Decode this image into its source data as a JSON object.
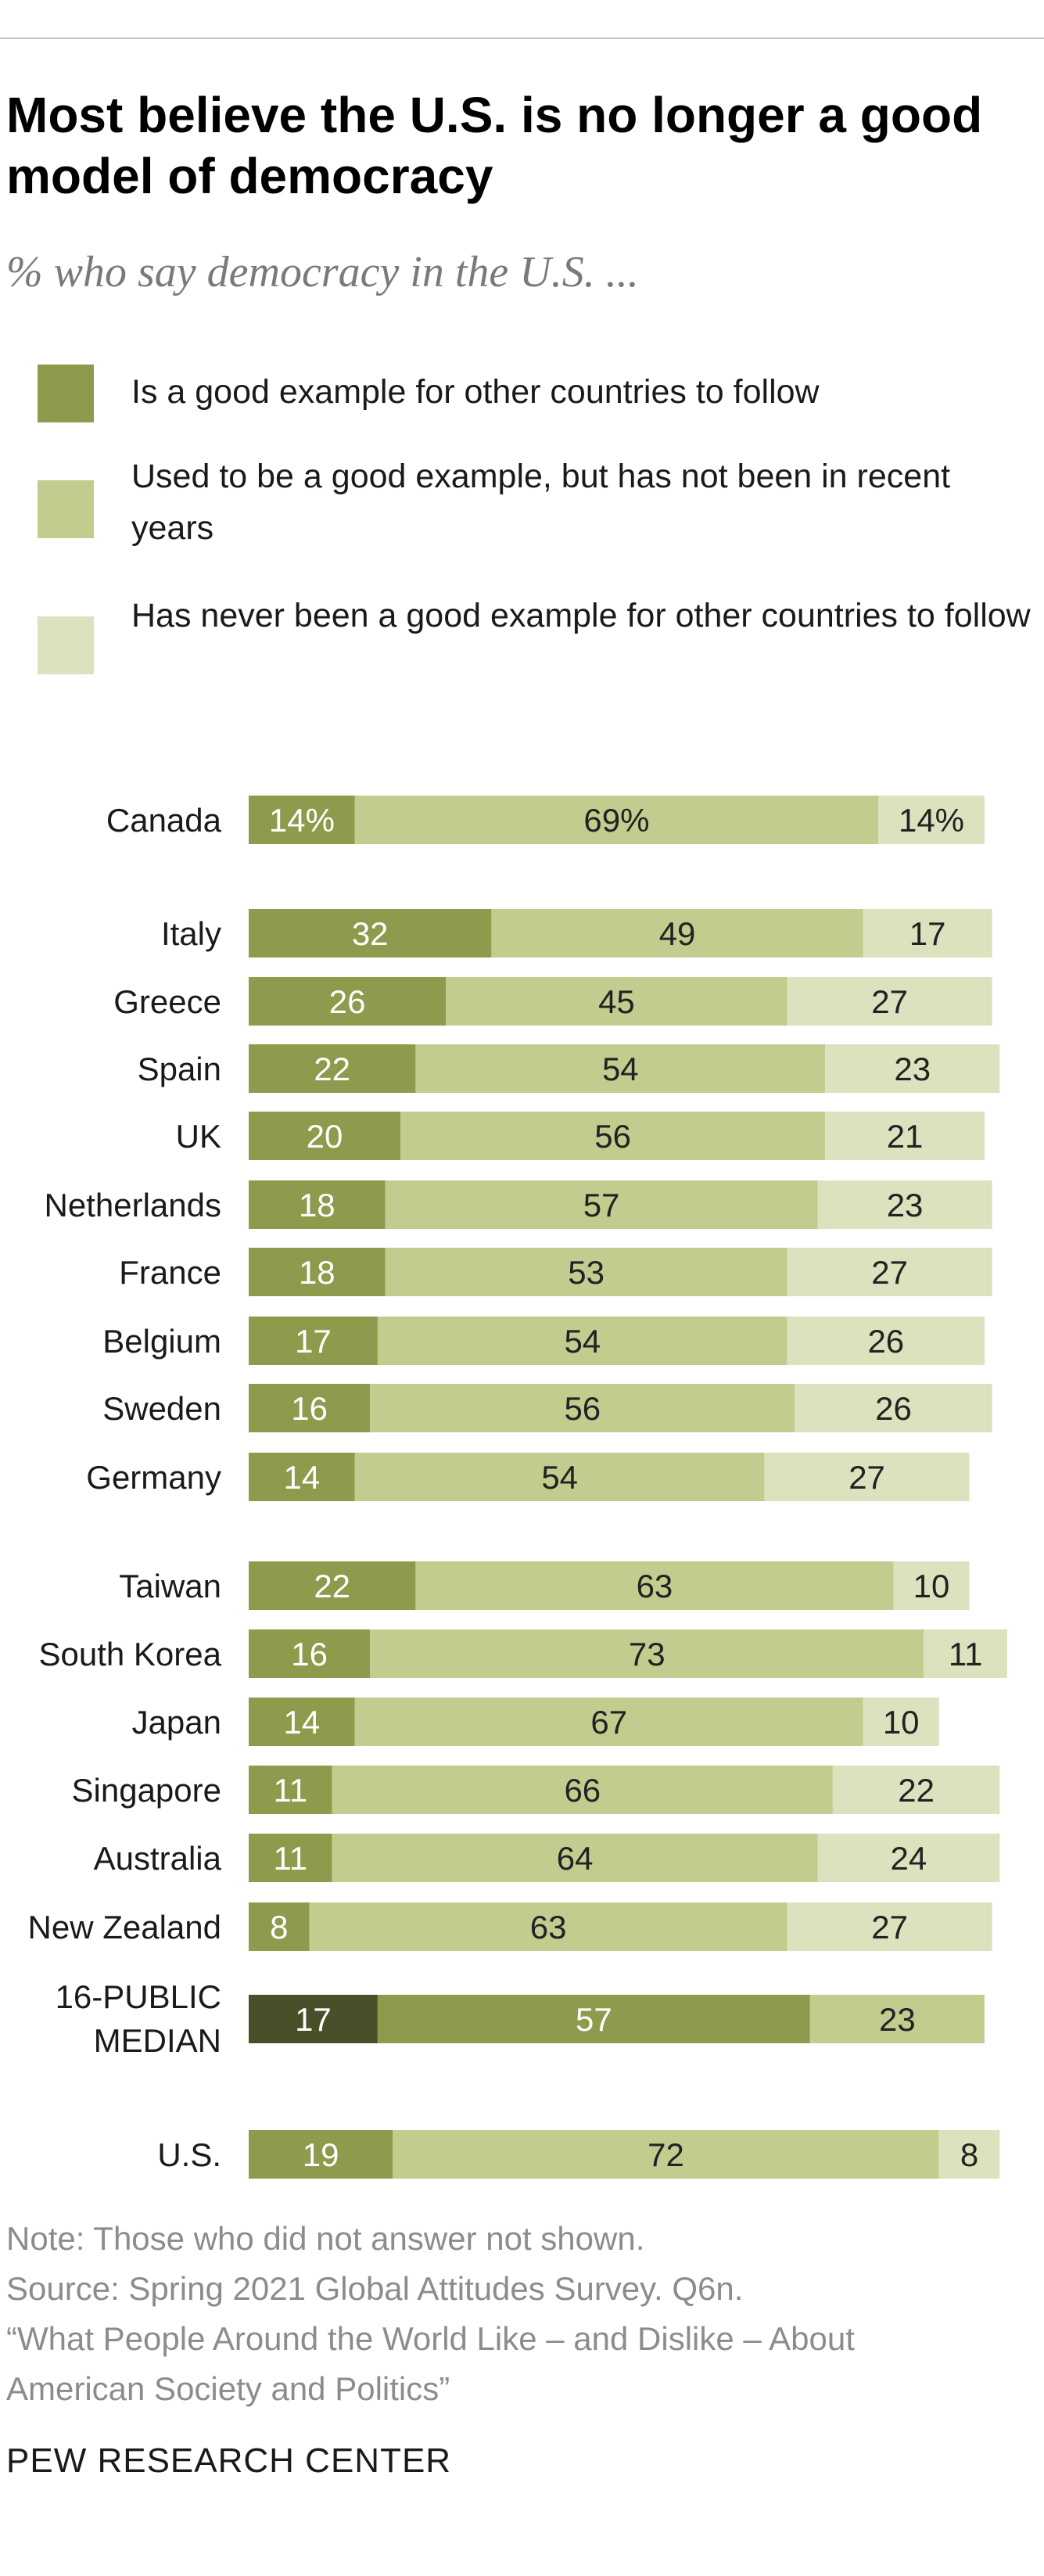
{
  "title": "Most believe the U.S. is no longer a good model of democracy",
  "subtitle": "% who say democracy in the U.S. ...",
  "legend": [
    {
      "label": "Is a good example for other countries to follow",
      "color": "#8f9a4d"
    },
    {
      "label": "Used to be a good example, but has not been in recent years",
      "color": "#c3cc8e"
    },
    {
      "label": "Has never been a good example for other countries to follow",
      "color": "#dce2bd"
    }
  ],
  "chart_data": {
    "type": "bar",
    "orientation": "horizontal",
    "stacked": true,
    "series": [
      {
        "name": "Is a good example for other countries to follow"
      },
      {
        "name": "Used to be a good example, but has not been in recent years"
      },
      {
        "name": "Has never been a good example for other countries to follow"
      }
    ],
    "rows": [
      {
        "label": "Canada",
        "values": [
          14,
          69,
          14
        ],
        "value_labels": [
          "14%",
          "69%",
          "14%"
        ]
      },
      {
        "label": "Italy",
        "values": [
          32,
          49,
          17
        ]
      },
      {
        "label": "Greece",
        "values": [
          26,
          45,
          27
        ]
      },
      {
        "label": "Spain",
        "values": [
          22,
          54,
          23
        ]
      },
      {
        "label": "UK",
        "values": [
          20,
          56,
          21
        ]
      },
      {
        "label": "Netherlands",
        "values": [
          18,
          57,
          23
        ]
      },
      {
        "label": "France",
        "values": [
          18,
          53,
          27
        ]
      },
      {
        "label": "Belgium",
        "values": [
          17,
          54,
          26
        ]
      },
      {
        "label": "Sweden",
        "values": [
          16,
          56,
          26
        ]
      },
      {
        "label": "Germany",
        "values": [
          14,
          54,
          27
        ]
      },
      {
        "label": "Taiwan",
        "values": [
          22,
          63,
          10
        ]
      },
      {
        "label": "South Korea",
        "values": [
          16,
          73,
          11
        ]
      },
      {
        "label": "Japan",
        "values": [
          14,
          67,
          10
        ]
      },
      {
        "label": "Singapore",
        "values": [
          11,
          66,
          22
        ]
      },
      {
        "label": "Australia",
        "values": [
          11,
          64,
          24
        ]
      },
      {
        "label": "New Zealand",
        "values": [
          8,
          63,
          27
        ]
      },
      {
        "label": "16-PUBLIC MEDIAN",
        "label_lines": [
          "16-PUBLIC",
          "MEDIAN"
        ],
        "values": [
          17,
          57,
          23
        ],
        "highlight": true
      },
      {
        "label": "U.S.",
        "values": [
          19,
          72,
          8
        ]
      }
    ],
    "colors": [
      "#8f9a4d",
      "#c3cc8e",
      "#dce2bd"
    ],
    "median_colors": [
      "#4a4f2a",
      "#8f9a4d",
      "#c3cc8e"
    ],
    "xlim": [
      0,
      100
    ]
  },
  "notes": {
    "note": "Note: Those who did not answer not shown.",
    "source": "Source: Spring 2021 Global Attitudes Survey. Q6n.",
    "report_line1": "“What People Around the World Like – and Dislike – About",
    "report_line2": "American Society and Politics”"
  },
  "brand": "PEW RESEARCH CENTER"
}
